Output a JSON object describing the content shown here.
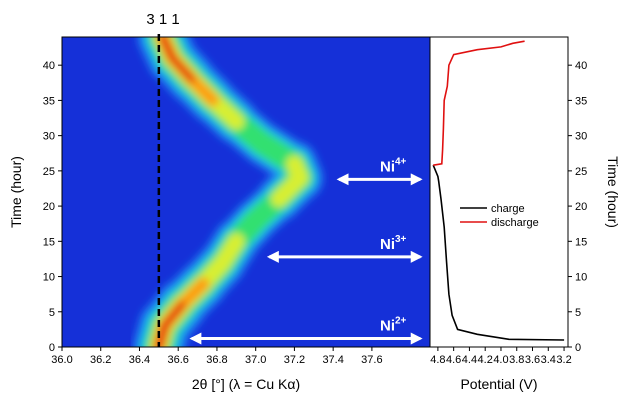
{
  "chart_data": [
    {
      "type": "heatmap",
      "peak_annotation": "3 1 1",
      "reference_line_x": 36.5,
      "xlabel": "2θ [°] (λ = Cu Kα)",
      "ylabel": "Time (hour)",
      "xlim": [
        36.0,
        37.9
      ],
      "ylim": [
        0,
        44
      ],
      "x_ticks": [
        "36.0",
        "36.2",
        "36.4",
        "36.6",
        "36.8",
        "37.0",
        "37.2",
        "37.4",
        "37.6"
      ],
      "y_ticks": [
        "0",
        "5",
        "10",
        "15",
        "20",
        "25",
        "30",
        "35",
        "40"
      ],
      "peak_ridge": [
        {
          "t": 0,
          "x": 36.5,
          "i": 0.95
        },
        {
          "t": 3,
          "x": 36.53,
          "i": 0.98
        },
        {
          "t": 6,
          "x": 36.62,
          "i": 0.85
        },
        {
          "t": 9,
          "x": 36.73,
          "i": 0.7
        },
        {
          "t": 12,
          "x": 36.83,
          "i": 0.68
        },
        {
          "t": 15,
          "x": 36.9,
          "i": 0.62
        },
        {
          "t": 18,
          "x": 37.0,
          "i": 0.45
        },
        {
          "t": 21,
          "x": 37.12,
          "i": 0.55
        },
        {
          "t": 24,
          "x": 37.23,
          "i": 0.72
        },
        {
          "t": 26,
          "x": 37.2,
          "i": 0.65
        },
        {
          "t": 29,
          "x": 37.03,
          "i": 0.45
        },
        {
          "t": 32,
          "x": 36.9,
          "i": 0.6
        },
        {
          "t": 35,
          "x": 36.78,
          "i": 0.72
        },
        {
          "t": 38,
          "x": 36.67,
          "i": 0.75
        },
        {
          "t": 41,
          "x": 36.57,
          "i": 0.88
        },
        {
          "t": 44,
          "x": 36.52,
          "i": 0.92
        }
      ],
      "annotations": [
        {
          "text": "Ni",
          "sup": "2+",
          "y": 1.2,
          "arrow_x": [
            36.67,
            37.85
          ]
        },
        {
          "text": "Ni",
          "sup": "3+",
          "y": 12.8,
          "arrow_x": [
            37.07,
            37.85
          ]
        },
        {
          "text": "Ni",
          "sup": "4+",
          "y": 23.8,
          "arrow_x": [
            37.43,
            37.85
          ]
        }
      ],
      "colors": {
        "low": "#1530d8",
        "mid": "#30e070",
        "high": "#e01010",
        "arrow": "#ffffff",
        "reference_line": "#000000"
      }
    },
    {
      "type": "line",
      "xlabel": "Potential (V)",
      "ylabel": "Time (hour)",
      "x_reversed": true,
      "xlim": [
        4.9,
        3.15
      ],
      "ylim": [
        0,
        44
      ],
      "x_ticks": [
        "4.8",
        "4.6",
        "4.4",
        "4.2",
        "4.0",
        "3.8",
        "3.6",
        "3.4",
        "3.2"
      ],
      "y_ticks": [
        "0",
        "5",
        "10",
        "15",
        "20",
        "25",
        "30",
        "35",
        "40"
      ],
      "legend_position": "center",
      "series": [
        {
          "name": "charge",
          "color": "#000000",
          "points": [
            [
              3.2,
              1.0
            ],
            [
              3.9,
              1.1
            ],
            [
              4.3,
              1.8
            ],
            [
              4.55,
              2.5
            ],
            [
              4.62,
              4.5
            ],
            [
              4.66,
              7.5
            ],
            [
              4.69,
              12.0
            ],
            [
              4.72,
              17.0
            ],
            [
              4.76,
              21.0
            ],
            [
              4.79,
              23.5
            ],
            [
              4.8,
              24.2
            ],
            [
              4.84,
              25.3
            ],
            [
              4.86,
              25.8
            ]
          ]
        },
        {
          "name": "discharge",
          "color": "#e01010",
          "points": [
            [
              4.86,
              25.8
            ],
            [
              4.75,
              26.0
            ],
            [
              4.74,
              28.0
            ],
            [
              4.73,
              31.0
            ],
            [
              4.72,
              35.0
            ],
            [
              4.68,
              37.0
            ],
            [
              4.66,
              40.0
            ],
            [
              4.6,
              41.5
            ],
            [
              4.3,
              42.2
            ],
            [
              4.0,
              42.6
            ],
            [
              3.85,
              43.1
            ],
            [
              3.7,
              43.4
            ]
          ]
        }
      ]
    }
  ]
}
